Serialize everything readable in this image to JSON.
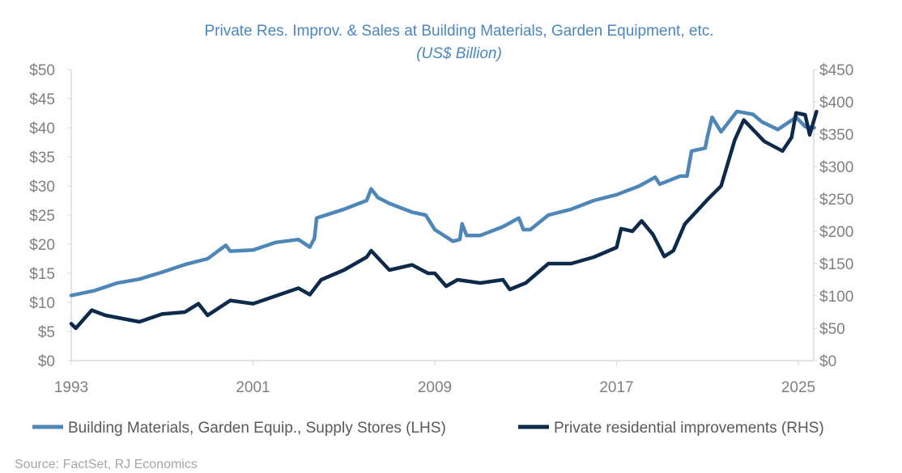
{
  "chart_data": {
    "type": "line",
    "title": "Private Res. Improv. & Sales at Building Materials, Garden Equipment, etc.",
    "subtitle": "(US$ Billion)",
    "source": "Source: FactSet, RJ Economics",
    "x_ticks": [
      "1993",
      "2001",
      "2009",
      "2017",
      "2025"
    ],
    "xlim": [
      1993,
      2025.8
    ],
    "y_left": {
      "ylim": [
        0,
        50
      ],
      "ticks": [
        "$0",
        "$5",
        "$10",
        "$15",
        "$20",
        "$25",
        "$30",
        "$35",
        "$40",
        "$45",
        "$50"
      ]
    },
    "y_right": {
      "ylim": [
        0,
        450
      ],
      "ticks": [
        "$0",
        "$50",
        "$100",
        "$150",
        "$200",
        "$250",
        "$300",
        "$350",
        "$400",
        "$450"
      ]
    },
    "grid": false,
    "legend_position": "bottom",
    "series": [
      {
        "name": "Building Materials, Garden Equip., Supply Stores (LHS)",
        "axis": "left",
        "color": "#4f86b8",
        "points": [
          [
            1993,
            11.2
          ],
          [
            1994,
            12
          ],
          [
            1995,
            13.3
          ],
          [
            1996,
            14
          ],
          [
            1997,
            15.2
          ],
          [
            1998,
            16.5
          ],
          [
            1999,
            17.5
          ],
          [
            1999.8,
            19.8
          ],
          [
            2000,
            18.8
          ],
          [
            2001,
            19
          ],
          [
            2002,
            20.3
          ],
          [
            2003,
            20.8
          ],
          [
            2003.5,
            19.5
          ],
          [
            2003.7,
            21
          ],
          [
            2003.8,
            24.5
          ],
          [
            2005,
            26
          ],
          [
            2006,
            27.5
          ],
          [
            2006.2,
            29.5
          ],
          [
            2006.5,
            28
          ],
          [
            2007,
            27
          ],
          [
            2008,
            25.5
          ],
          [
            2008.6,
            25
          ],
          [
            2009,
            22.5
          ],
          [
            2009.8,
            20.5
          ],
          [
            2010.1,
            20.8
          ],
          [
            2010.2,
            23.5
          ],
          [
            2010.4,
            21.5
          ],
          [
            2011,
            21.5
          ],
          [
            2012,
            23
          ],
          [
            2012.7,
            24.5
          ],
          [
            2012.9,
            22.5
          ],
          [
            2013.2,
            22.5
          ],
          [
            2014,
            25
          ],
          [
            2015,
            26
          ],
          [
            2016,
            27.5
          ],
          [
            2017,
            28.5
          ],
          [
            2018,
            30
          ],
          [
            2018.7,
            31.5
          ],
          [
            2018.9,
            30.3
          ],
          [
            2019.8,
            31.7
          ],
          [
            2020.1,
            31.7
          ],
          [
            2020.3,
            36
          ],
          [
            2020.9,
            36.5
          ],
          [
            2021.0,
            38.5
          ],
          [
            2021.2,
            41.8
          ],
          [
            2021.6,
            39.3
          ],
          [
            2022.3,
            42.8
          ],
          [
            2023,
            42.3
          ],
          [
            2023.4,
            41
          ],
          [
            2024.1,
            39.7
          ],
          [
            2024.9,
            41.8
          ],
          [
            2025.3,
            40.2
          ],
          [
            2025.7,
            40
          ]
        ]
      },
      {
        "name": "Private residential improvements (RHS)",
        "axis": "right",
        "color": "#0d2a4a",
        "points": [
          [
            1993,
            57
          ],
          [
            1993.2,
            50
          ],
          [
            1993.9,
            78
          ],
          [
            1994.5,
            70
          ],
          [
            1996,
            60
          ],
          [
            1997,
            72
          ],
          [
            1998,
            75
          ],
          [
            1998.6,
            88
          ],
          [
            1999,
            70
          ],
          [
            2000,
            93
          ],
          [
            2001,
            88
          ],
          [
            2002,
            100
          ],
          [
            2003,
            112
          ],
          [
            2003.5,
            102
          ],
          [
            2004,
            125
          ],
          [
            2005,
            140
          ],
          [
            2006,
            160
          ],
          [
            2006.2,
            170
          ],
          [
            2007,
            140
          ],
          [
            2008,
            148
          ],
          [
            2008.7,
            135
          ],
          [
            2009,
            135
          ],
          [
            2009.5,
            115
          ],
          [
            2010,
            125
          ],
          [
            2011,
            120
          ],
          [
            2012,
            125
          ],
          [
            2012.3,
            110
          ],
          [
            2013,
            120
          ],
          [
            2014,
            150
          ],
          [
            2015,
            150
          ],
          [
            2016,
            160
          ],
          [
            2017,
            175
          ],
          [
            2017.2,
            204
          ],
          [
            2017.7,
            200
          ],
          [
            2018.1,
            216
          ],
          [
            2018.6,
            195
          ],
          [
            2019.1,
            161
          ],
          [
            2019.5,
            170
          ],
          [
            2020,
            211
          ],
          [
            2021,
            249
          ],
          [
            2021.6,
            270
          ],
          [
            2022.2,
            341
          ],
          [
            2022.6,
            372
          ],
          [
            2023.5,
            339
          ],
          [
            2024.3,
            324
          ],
          [
            2024.7,
            345
          ],
          [
            2024.9,
            383
          ],
          [
            2025.3,
            380
          ],
          [
            2025.5,
            349
          ],
          [
            2025.8,
            385
          ]
        ]
      }
    ]
  }
}
